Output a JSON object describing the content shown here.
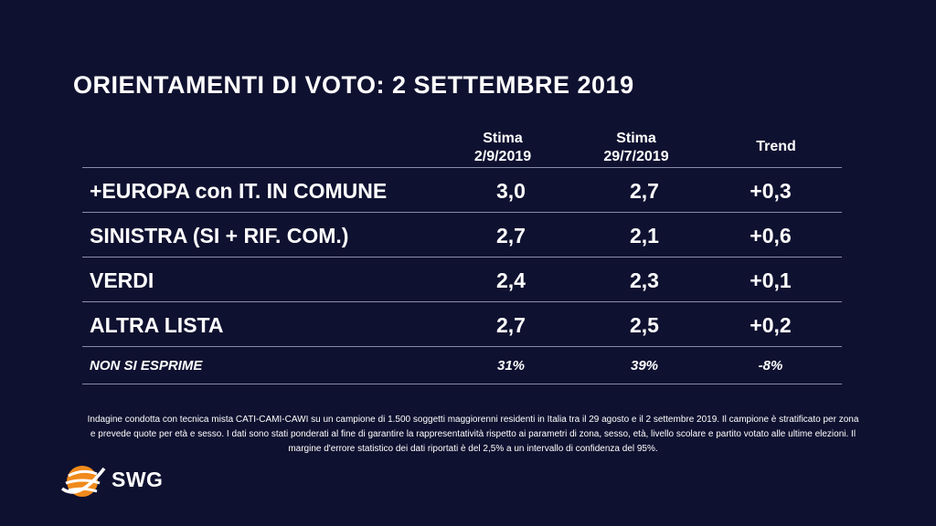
{
  "title": "ORIENTAMENTI DI VOTO: 2 SETTEMBRE 2019",
  "chart_data": {
    "type": "table",
    "columns": [
      {
        "line1": "Stima",
        "line2": "2/9/2019"
      },
      {
        "line1": "Stima",
        "line2": "29/7/2019"
      },
      {
        "line1": "Trend",
        "line2": ""
      }
    ],
    "rows": [
      {
        "party": "+EUROPA con IT. IN COMUNE",
        "stima_sep": "3,0",
        "stima_jul": "2,7",
        "trend": "+0,3"
      },
      {
        "party": "SINISTRA (SI + RIF. COM.)",
        "stima_sep": "2,7",
        "stima_jul": "2,1",
        "trend": "+0,6"
      },
      {
        "party": "VERDI",
        "stima_sep": "2,4",
        "stima_jul": "2,3",
        "trend": "+0,1"
      },
      {
        "party": "ALTRA LISTA",
        "stima_sep": "2,7",
        "stima_jul": "2,5",
        "trend": "+0,2"
      }
    ],
    "footer_row": {
      "party": "NON SI ESPRIME",
      "stima_sep": "31%",
      "stima_jul": "39%",
      "trend": "-8%"
    }
  },
  "note": "Indagine condotta con tecnica mista CATI-CAMI-CAWI su un campione di 1.500 soggetti maggiorenni residenti in Italia tra il 29 agosto e il  2 settembre 2019. Il campione è stratificato per zona e prevede quote per età e sesso. I dati sono stati ponderati al fine di garantire la rappresentatività rispetto ai parametri di zona, sesso, età, livello scolare e partito votato alle ultime elezioni. Il margine d'errore statistico dei dati riportati è del 2,5% a un intervallo di confidenza del 95%.",
  "logo": {
    "text": "SWG",
    "icon": "swg-globe-icon",
    "color": "#f08a1c"
  },
  "colors": {
    "background": "#0f1130",
    "text": "#ffffff",
    "rule": "#8a8da8"
  }
}
